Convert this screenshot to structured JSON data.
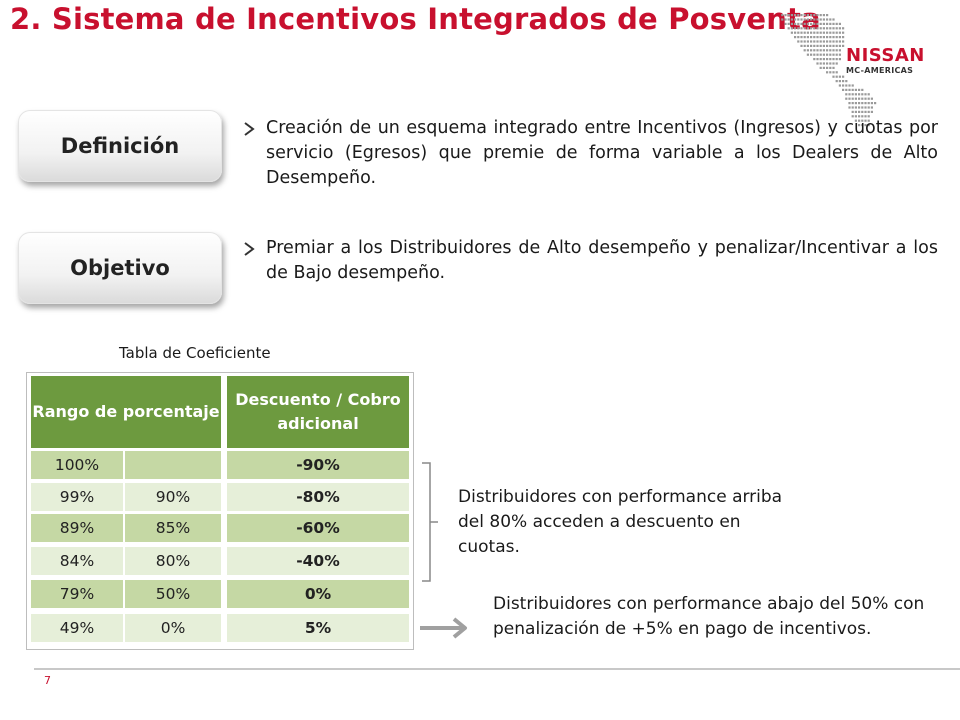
{
  "slide": {
    "title": "2. Sistema de Incentivos Integrados de Posventa",
    "page_number": "7"
  },
  "logo": {
    "brand": "NISSAN",
    "subtitle": "MC-AMERICAS"
  },
  "labels": {
    "definicion": "Definición",
    "objetivo": "Objetivo"
  },
  "bullets": {
    "definicion_text": "Creación de un esquema integrado entre Incentivos (Ingresos) y cuotas por servicio (Egresos) que premie de forma variable a los Dealers de Alto Desempeño.",
    "objetivo_text": "Premiar a los Distribuidores de Alto desempeño y penalizar/Incentivar a los de Bajo desempeño."
  },
  "table": {
    "caption": "Tabla de Coeficiente",
    "headers": [
      "Rango de porcentaje",
      "Descuento / Cobro adicional"
    ],
    "rows": [
      {
        "from": "100%",
        "to": "",
        "value": "-90%"
      },
      {
        "from": "99%",
        "to": "90%",
        "value": "-80%"
      },
      {
        "from": "89%",
        "to": "85%",
        "value": "-60%"
      },
      {
        "from": "84%",
        "to": "80%",
        "value": "-40%"
      },
      {
        "from": "79%",
        "to": "50%",
        "value": "0%"
      },
      {
        "from": "49%",
        "to": "0%",
        "value": "5%"
      }
    ]
  },
  "notes": {
    "above_80": "Distribuidores con performance arriba del 80% acceden a descuento en cuotas.",
    "below_50": "Distribuidores con performance abajo del 50% con penalización de +5% en pago de incentivos."
  },
  "colors": {
    "title_red": "#c8102e",
    "header_green": "#6d9a3f",
    "row_dark": "#c5d8a4",
    "row_light": "#e6efd9"
  }
}
